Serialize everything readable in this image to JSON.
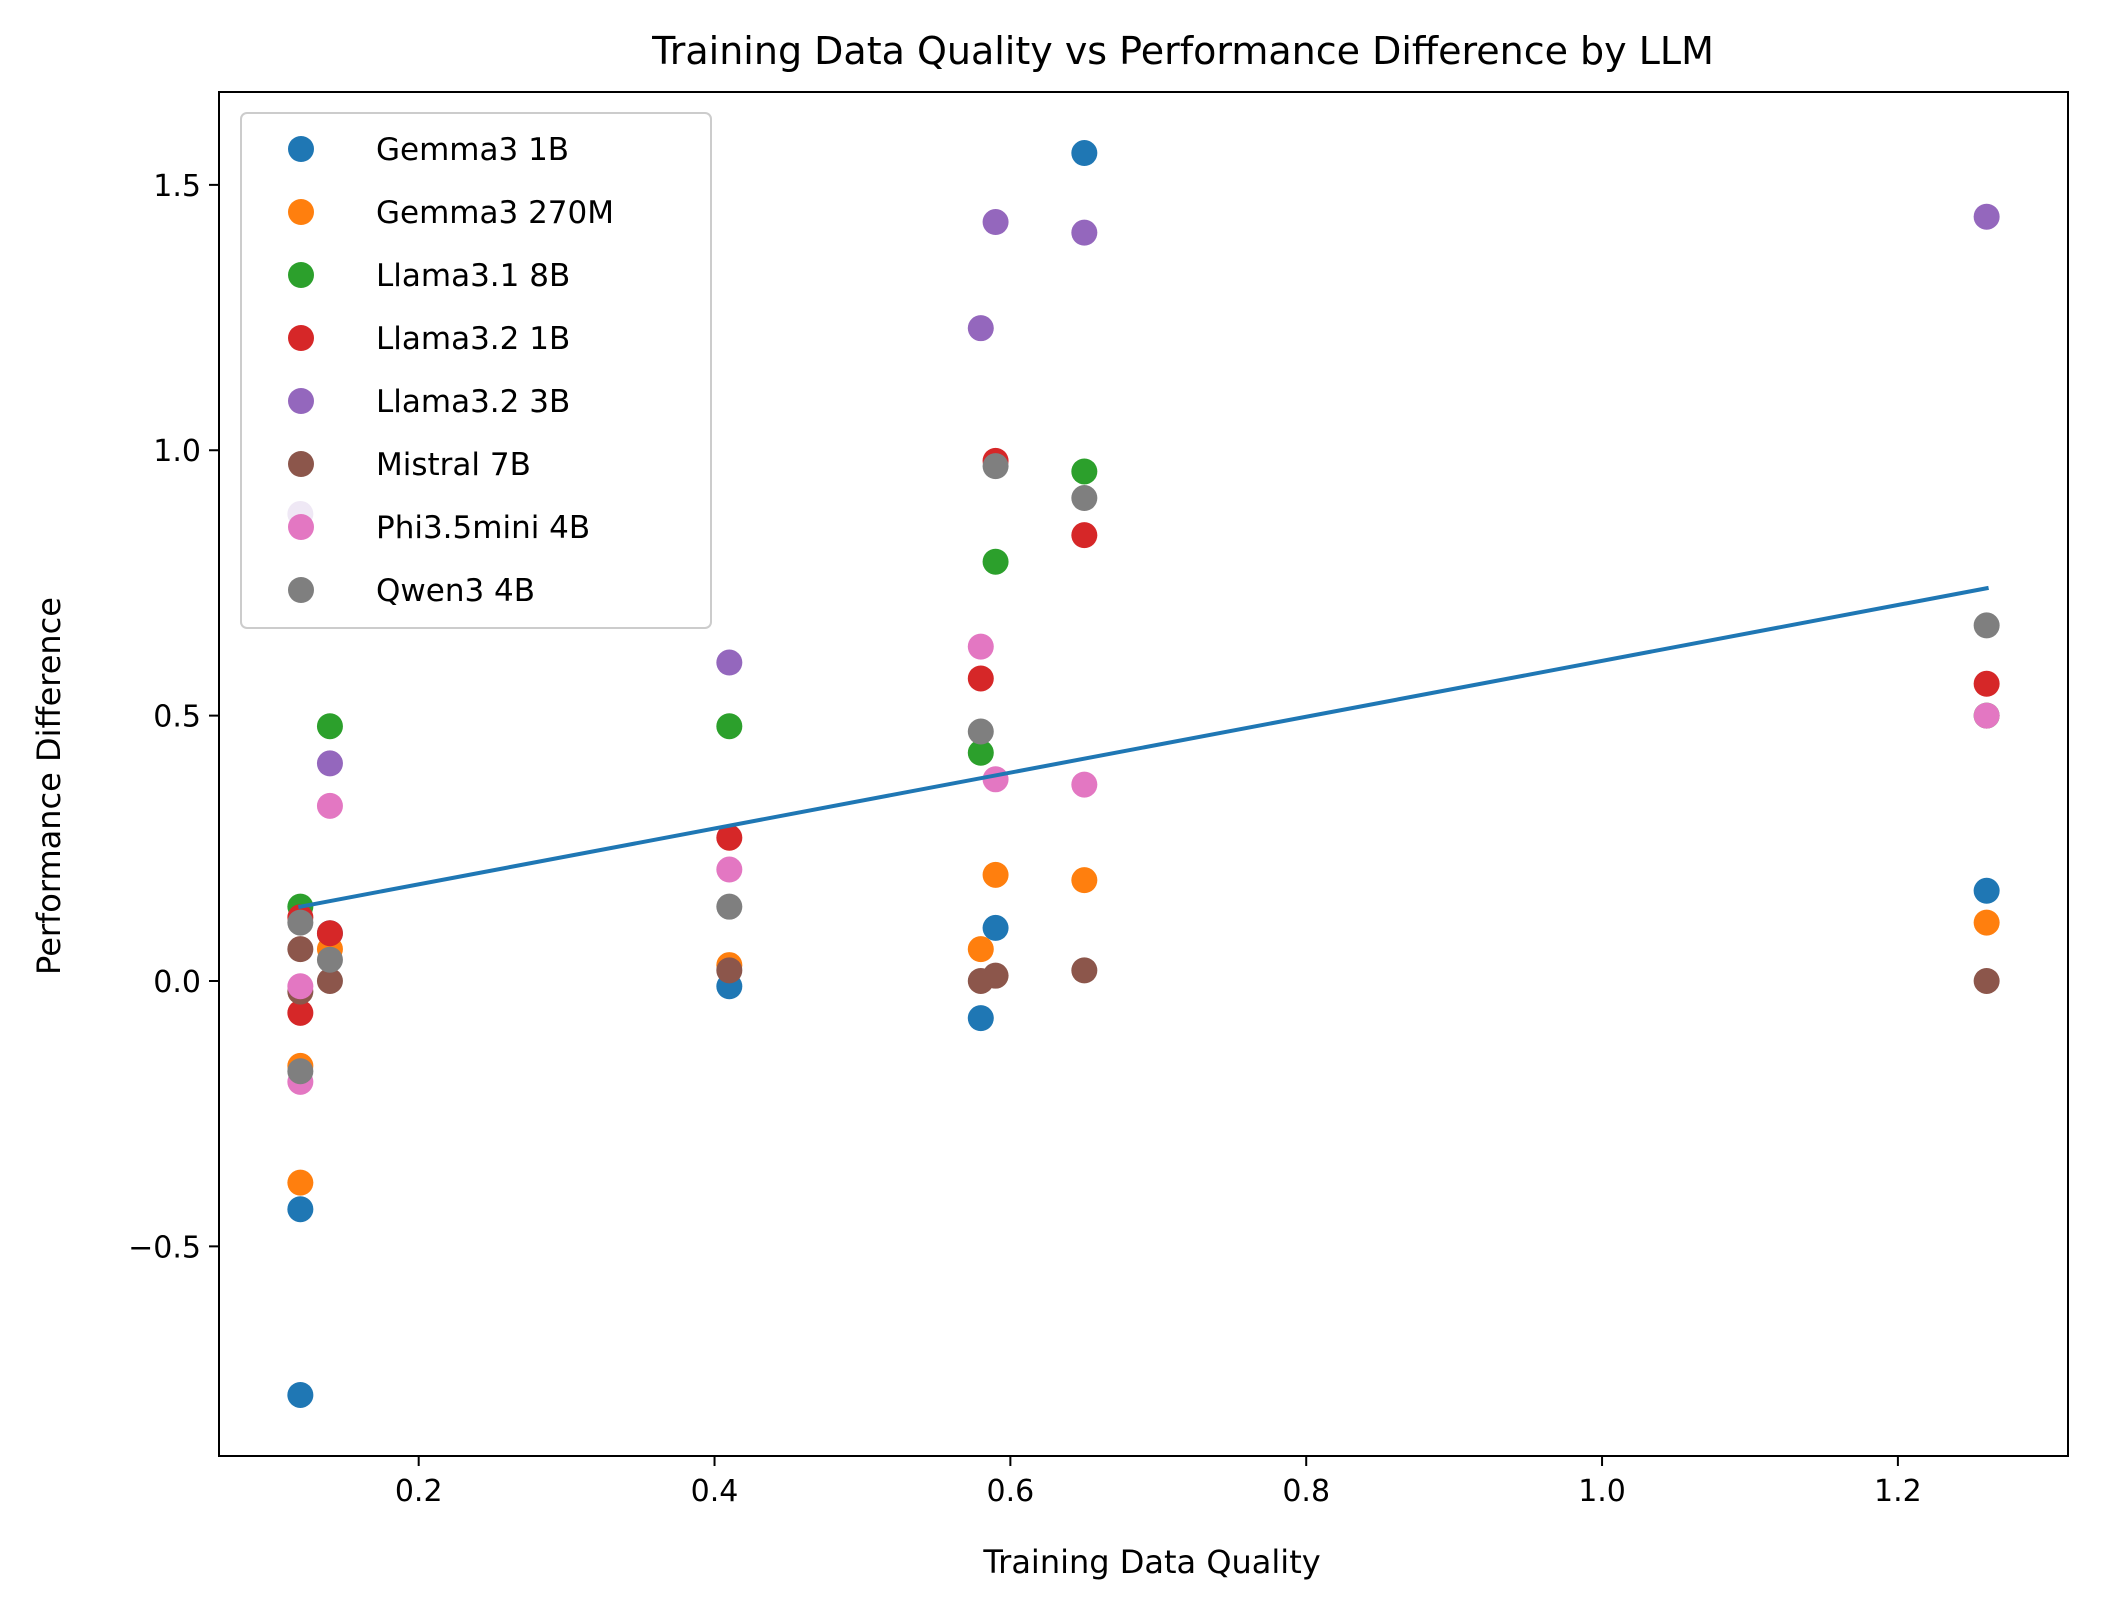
{
  "chart_data": {
    "type": "scatter",
    "title": "Training Data Quality vs Performance Difference by LLM",
    "xlabel": "Training Data Quality",
    "ylabel": "Performance Difference",
    "xlim": [
      0.065,
      1.315
    ],
    "ylim": [
      -0.895,
      1.675
    ],
    "xticks": [
      0.2,
      0.4,
      0.6,
      0.8,
      1.0,
      1.2
    ],
    "xtick_labels": [
      "0.2",
      "0.4",
      "0.6",
      "0.8",
      "1.0",
      "1.2"
    ],
    "yticks": [
      -0.5,
      0.0,
      0.5,
      1.0,
      1.5
    ],
    "ytick_labels": [
      "−0.5",
      "0.0",
      "0.5",
      "1.0",
      "1.5"
    ],
    "grid": false,
    "legend_position": "top-left",
    "series": [
      {
        "name": "Gemma3 1B",
        "color": "#1f77b4",
        "points": [
          [
            0.12,
            -0.78
          ],
          [
            0.12,
            -0.43
          ],
          [
            0.14,
            0.09
          ],
          [
            0.41,
            -0.01
          ],
          [
            0.58,
            -0.07
          ],
          [
            0.59,
            0.1
          ],
          [
            0.65,
            1.56
          ],
          [
            1.26,
            0.17
          ]
        ]
      },
      {
        "name": "Gemma3 270M",
        "color": "#ff7f0e",
        "points": [
          [
            0.12,
            -0.38
          ],
          [
            0.12,
            -0.16
          ],
          [
            0.14,
            0.06
          ],
          [
            0.41,
            0.03
          ],
          [
            0.58,
            0.06
          ],
          [
            0.59,
            0.2
          ],
          [
            0.65,
            0.19
          ],
          [
            1.26,
            0.11
          ]
        ]
      },
      {
        "name": "Llama3.1 8B",
        "color": "#2ca02c",
        "points": [
          [
            0.12,
            0.14
          ],
          [
            0.14,
            0.48
          ],
          [
            0.41,
            0.48
          ],
          [
            0.58,
            0.43
          ],
          [
            0.59,
            0.79
          ],
          [
            0.65,
            0.96
          ],
          [
            1.26,
            0.5
          ]
        ]
      },
      {
        "name": "Llama3.2 1B",
        "color": "#d62728",
        "points": [
          [
            0.12,
            -0.06
          ],
          [
            0.12,
            0.12
          ],
          [
            0.14,
            0.09
          ],
          [
            0.41,
            0.27
          ],
          [
            0.58,
            0.57
          ],
          [
            0.59,
            0.98
          ],
          [
            0.65,
            0.84
          ],
          [
            1.26,
            0.56
          ]
        ]
      },
      {
        "name": "Llama3.2 3B",
        "color": "#9467bd",
        "points": [
          [
            0.12,
            0.88
          ],
          [
            0.14,
            0.41
          ],
          [
            0.41,
            0.6
          ],
          [
            0.58,
            1.23
          ],
          [
            0.59,
            1.43
          ],
          [
            0.65,
            1.41
          ],
          [
            1.26,
            1.44
          ]
        ]
      },
      {
        "name": "Mistral 7B",
        "color": "#8c564b",
        "points": [
          [
            0.12,
            0.06
          ],
          [
            0.12,
            -0.02
          ],
          [
            0.14,
            0.0
          ],
          [
            0.41,
            0.02
          ],
          [
            0.58,
            0.0
          ],
          [
            0.59,
            0.01
          ],
          [
            0.65,
            0.02
          ],
          [
            1.26,
            0.0
          ]
        ]
      },
      {
        "name": "Phi3.5mini 4B",
        "color": "#e377c2",
        "points": [
          [
            0.12,
            -0.01
          ],
          [
            0.12,
            -0.19
          ],
          [
            0.14,
            0.33
          ],
          [
            0.41,
            0.21
          ],
          [
            0.58,
            0.63
          ],
          [
            0.59,
            0.38
          ],
          [
            0.65,
            0.37
          ],
          [
            1.26,
            0.5
          ]
        ]
      },
      {
        "name": "Qwen3 4B",
        "color": "#7f7f7f",
        "points": [
          [
            0.12,
            0.11
          ],
          [
            0.12,
            -0.17
          ],
          [
            0.14,
            0.04
          ],
          [
            0.41,
            0.14
          ],
          [
            0.58,
            0.47
          ],
          [
            0.59,
            0.97
          ],
          [
            0.65,
            0.91
          ],
          [
            1.26,
            0.67
          ]
        ]
      }
    ],
    "trend_line": {
      "color": "#1f77b4",
      "points": [
        [
          0.12,
          0.14
        ],
        [
          1.26,
          0.74
        ]
      ]
    }
  }
}
